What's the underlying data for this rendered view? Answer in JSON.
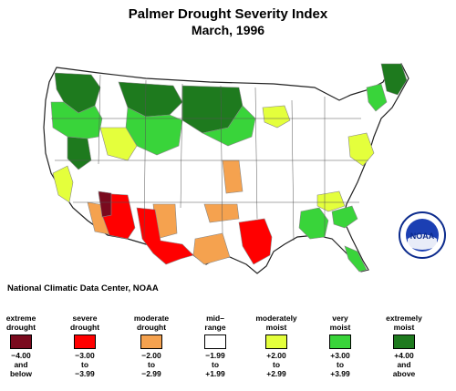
{
  "header": {
    "title": "Palmer Drought Severity Index",
    "subtitle": "March, 1996"
  },
  "credit": "National Climatic Data Center, NOAA",
  "logo": {
    "text": "NOAA",
    "icon": "noaa-logo-icon"
  },
  "legend": [
    {
      "label": [
        "extreme",
        "drought"
      ],
      "range": [
        "−4.00",
        "and",
        "below"
      ],
      "color": "#7a0a1e"
    },
    {
      "label": [
        "severe",
        "drought"
      ],
      "range": [
        "−3.00",
        "to",
        "−3.99"
      ],
      "color": "#ff0000"
    },
    {
      "label": [
        "moderate",
        "drought"
      ],
      "range": [
        "−2.00",
        "to",
        "−2.99"
      ],
      "color": "#f5a24f"
    },
    {
      "label": [
        "mid–",
        "range"
      ],
      "range": [
        "−1.99",
        "to",
        "+1.99"
      ],
      "color": "#ffffff"
    },
    {
      "label": [
        "moderately",
        "moist"
      ],
      "range": [
        "+2.00",
        "to",
        "+2.99"
      ],
      "color": "#e4ff3c"
    },
    {
      "label": [
        "very",
        "moist"
      ],
      "range": [
        "+3.00",
        "to",
        "+3.99"
      ],
      "color": "#39d43a"
    },
    {
      "label": [
        "extremely",
        "moist"
      ],
      "range": [
        "+4.00",
        "and",
        "above"
      ],
      "color": "#1e7a1e"
    }
  ]
}
